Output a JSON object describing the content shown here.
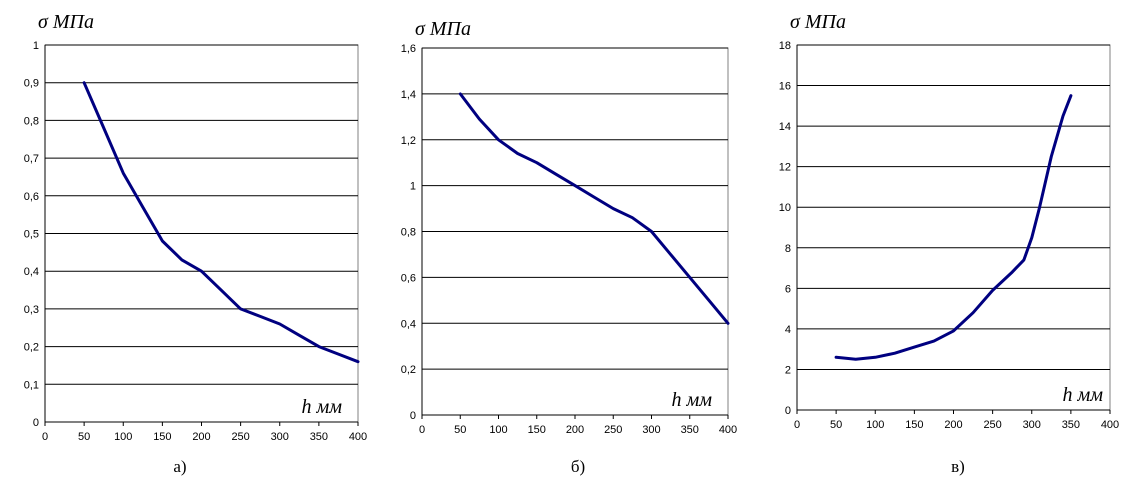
{
  "chart_data": [
    {
      "type": "line",
      "panel_label": "а)",
      "ylabel": "σ МПа",
      "xlabel": "h мм",
      "xlim": [
        0,
        400
      ],
      "ylim": [
        0,
        1
      ],
      "x_ticks": [
        "0",
        "50",
        "100",
        "150",
        "200",
        "250",
        "300",
        "350",
        "400"
      ],
      "y_ticks": [
        "0",
        "0,1",
        "0,2",
        "0,3",
        "0,4",
        "0,5",
        "0,6",
        "0,7",
        "0,8",
        "0,9",
        "1"
      ],
      "y_tick_values": [
        0,
        0.1,
        0.2,
        0.3,
        0.4,
        0.5,
        0.6,
        0.7,
        0.8,
        0.9,
        1
      ],
      "grid": true,
      "series": [
        {
          "x": [
            50,
            75,
            100,
            125,
            150,
            175,
            200,
            225,
            250,
            275,
            300,
            325,
            350,
            375,
            400
          ],
          "y": [
            0.9,
            0.78,
            0.66,
            0.57,
            0.48,
            0.43,
            0.4,
            0.35,
            0.3,
            0.28,
            0.26,
            0.23,
            0.2,
            0.18,
            0.16
          ]
        }
      ]
    },
    {
      "type": "line",
      "panel_label": "б)",
      "ylabel": "σ МПа",
      "xlabel": "h мм",
      "xlim": [
        0,
        400
      ],
      "ylim": [
        0,
        1.6
      ],
      "x_ticks": [
        "0",
        "50",
        "100",
        "150",
        "200",
        "250",
        "300",
        "350",
        "400"
      ],
      "y_ticks": [
        "0",
        "0,2",
        "0,4",
        "0,6",
        "0,8",
        "1",
        "1,2",
        "1,4",
        "1,6"
      ],
      "y_tick_values": [
        0,
        0.2,
        0.4,
        0.6,
        0.8,
        1,
        1.2,
        1.4,
        1.6
      ],
      "grid": true,
      "series": [
        {
          "x": [
            50,
            75,
            100,
            125,
            150,
            175,
            200,
            225,
            250,
            275,
            300,
            325,
            350,
            375,
            400
          ],
          "y": [
            1.4,
            1.29,
            1.2,
            1.14,
            1.1,
            1.05,
            1.0,
            0.95,
            0.9,
            0.86,
            0.8,
            0.7,
            0.6,
            0.5,
            0.4
          ]
        }
      ]
    },
    {
      "type": "line",
      "panel_label": "в)",
      "ylabel": "σ МПа",
      "xlabel": "h мм",
      "xlim": [
        0,
        400
      ],
      "ylim": [
        0,
        18
      ],
      "x_ticks": [
        "0",
        "50",
        "100",
        "150",
        "200",
        "250",
        "300",
        "350",
        "400"
      ],
      "y_ticks": [
        "0",
        "2",
        "4",
        "6",
        "8",
        "10",
        "12",
        "14",
        "16",
        "18"
      ],
      "y_tick_values": [
        0,
        2,
        4,
        6,
        8,
        10,
        12,
        14,
        16,
        18
      ],
      "grid": true,
      "series": [
        {
          "x": [
            50,
            75,
            100,
            125,
            150,
            175,
            200,
            225,
            250,
            275,
            290,
            300,
            310,
            325,
            340,
            350
          ],
          "y": [
            2.6,
            2.5,
            2.6,
            2.8,
            3.1,
            3.4,
            3.9,
            4.8,
            5.9,
            6.8,
            7.4,
            8.5,
            10,
            12.5,
            14.5,
            15.5
          ]
        }
      ]
    }
  ]
}
